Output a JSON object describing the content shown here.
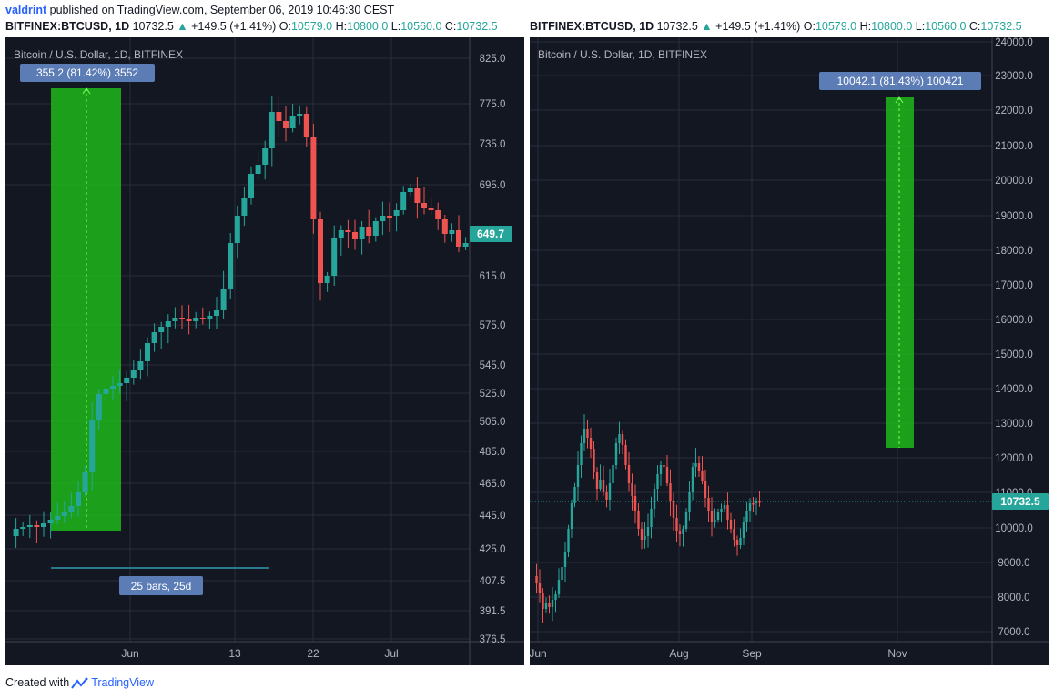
{
  "header": {
    "user": "valdrint",
    "published_text": "published on TradingView.com, September 06, 2019 10:46:30 CEST"
  },
  "left_symbol_line": {
    "symbol": "BITFINEX:BTCUSD, 1D",
    "last": "10732.5",
    "change": "+149.5 (+1.41%)",
    "o_label": "O:",
    "o": "10579.0",
    "h_label": "H:",
    "h": "10800.0",
    "l_label": "L:",
    "l": "10560.0",
    "c_label": "C:",
    "c": "10732.5"
  },
  "right_symbol_line": {
    "symbol": "BITFINEX:BTCUSD, 1D",
    "last": "10732.5",
    "change": "+149.5 (+1.41%)",
    "o_label": "O:",
    "o": "10579.0",
    "h_label": "H:",
    "h": "10800.0",
    "l_label": "L:",
    "l": "10560.0",
    "c_label": "C:",
    "c": "10732.5"
  },
  "footer": {
    "created_with": "Created with",
    "brand": "TradingView"
  },
  "colors": {
    "background": "#131722",
    "grid": "#2a2e39",
    "up": "#26a69a",
    "down": "#ef5350",
    "measure_fill": "#1fb71a",
    "label_bg": "#5b7cb5",
    "price_tag": "#26a69a",
    "axis_text": "#b2b5be"
  },
  "chart_data": [
    {
      "type": "candlestick",
      "title": "Bitcoin / U.S. Dollar, 1D, BITFINEX",
      "y_ticks": [
        "825.0",
        "775.0",
        "735.0",
        "695.0",
        "615.0",
        "575.0",
        "545.0",
        "525.0",
        "505.0",
        "485.0",
        "465.0",
        "445.0",
        "425.0",
        "407.5",
        "391.5",
        "376.5"
      ],
      "x_ticks": [
        "Jun",
        "13",
        "22",
        "Jul"
      ],
      "last_price_label": "649.7",
      "measure_label": "355.2 (81.42%) 3552",
      "range_label": "25 bars, 25d",
      "grid": true
    },
    {
      "type": "candlestick",
      "title": "Bitcoin / U.S. Dollar, 1D, BITFINEX",
      "y_ticks": [
        "24000.0",
        "23000.0",
        "22000.0",
        "21000.0",
        "20000.0",
        "19000.0",
        "18000.0",
        "17000.0",
        "16000.0",
        "15000.0",
        "14000.0",
        "13000.0",
        "12000.0",
        "11000.0",
        "10000.0",
        "9000.0",
        "8000.0",
        "7000.0"
      ],
      "x_ticks": [
        "Jun",
        "Aug",
        "Sep",
        "Nov"
      ],
      "last_price_label": "10732.5",
      "measure_label": "10042.1 (81.43%) 100421",
      "grid": true
    }
  ]
}
